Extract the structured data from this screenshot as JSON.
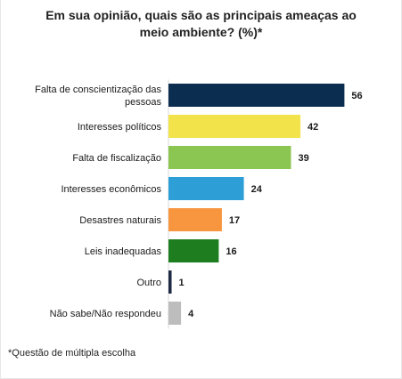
{
  "chart_data": {
    "type": "bar",
    "orientation": "horizontal",
    "title": "Em sua opinião, quais são as principais ameaças ao meio ambiente?  (%)*",
    "categories": [
      "Falta de conscientização das pessoas",
      "Interesses políticos",
      "Falta de fiscalização",
      "Interesses econômicos",
      "Desastres naturais",
      "Leis inadequadas",
      "Outro",
      "Não sabe/Não respondeu"
    ],
    "values": [
      56,
      42,
      39,
      24,
      17,
      16,
      1,
      4
    ],
    "colors": [
      "#0b2d4f",
      "#f2e34a",
      "#8cc652",
      "#2e9fd6",
      "#f7963f",
      "#1e7d1e",
      "#1f2a44",
      "#bdbdbd"
    ],
    "xlim": [
      0,
      60
    ],
    "grid": false,
    "legend": "none"
  },
  "footnote": "*Questão de múltipla escolha"
}
